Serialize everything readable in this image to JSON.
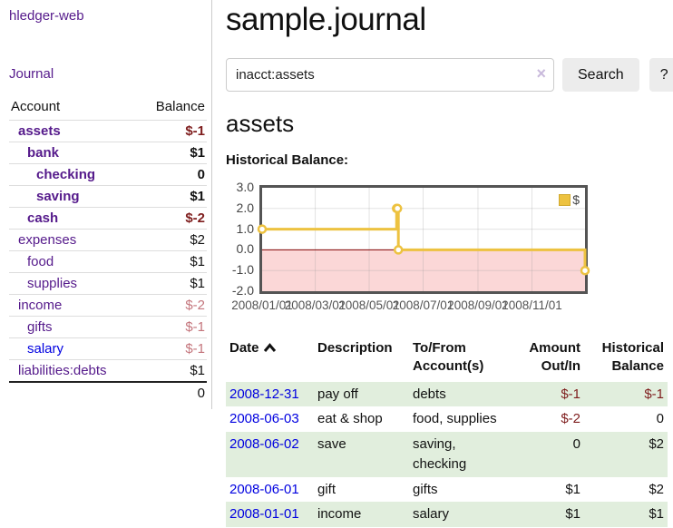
{
  "app": {
    "title": "hledger-web",
    "nav_journal": "Journal"
  },
  "colors": {
    "link_visited_purple": "#551a8b",
    "link_blue": "#0000e0",
    "negative_strong": "#7e1d1d",
    "negative_soft": "#c4757c",
    "row_green": "#e1eedd",
    "series_yellow": "#edc240",
    "negative_area_pink": "#fbd7d7",
    "zero_line_red": "#800000",
    "plot_border_gray": "#545454"
  },
  "sidebar": {
    "header": {
      "account": "Account",
      "balance": "Balance"
    },
    "accounts": [
      {
        "name": "assets",
        "level": 1,
        "bold": true,
        "balance": "$-1",
        "balance_class": "neg-strong",
        "link_class": "purple"
      },
      {
        "name": "bank",
        "level": 2,
        "bold": true,
        "balance": "$1",
        "balance_class": "pos",
        "link_class": "purple"
      },
      {
        "name": "checking",
        "level": 3,
        "bold": true,
        "balance": "0",
        "balance_class": "pos",
        "link_class": "purple"
      },
      {
        "name": "saving",
        "level": 3,
        "bold": true,
        "balance": "$1",
        "balance_class": "pos",
        "link_class": "purple"
      },
      {
        "name": "cash",
        "level": 2,
        "bold": true,
        "balance": "$-2",
        "balance_class": "neg-strong",
        "link_class": "purple"
      },
      {
        "name": "expenses",
        "level": 1,
        "bold": false,
        "balance": "$2",
        "balance_class": "pos",
        "link_class": "purple"
      },
      {
        "name": "food",
        "level": 2,
        "bold": false,
        "balance": "$1",
        "balance_class": "pos",
        "link_class": "purple"
      },
      {
        "name": "supplies",
        "level": 2,
        "bold": false,
        "balance": "$1",
        "balance_class": "pos",
        "link_class": "purple"
      },
      {
        "name": "income",
        "level": 1,
        "bold": false,
        "balance": "$-2",
        "balance_class": "neg-soft",
        "link_class": "purple"
      },
      {
        "name": "gifts",
        "level": 2,
        "bold": false,
        "balance": "$-1",
        "balance_class": "neg-soft",
        "link_class": "purple"
      },
      {
        "name": "salary",
        "level": 2,
        "bold": false,
        "balance": "$-1",
        "balance_class": "neg-soft",
        "link_class": "blue"
      },
      {
        "name": "liabilities:debts",
        "level": 1,
        "bold": false,
        "balance": "$1",
        "balance_class": "pos",
        "link_class": "purple"
      }
    ],
    "total": "0"
  },
  "main": {
    "title": "sample.journal",
    "search": {
      "value": "inacct:assets",
      "clear_icon": "×",
      "button_label": "Search",
      "help_label": "?"
    },
    "account_heading": "assets",
    "chart_label": "Historical Balance:",
    "table": {
      "headers": {
        "date": "Date",
        "description": "Description",
        "tofrom": "To/From Account(s)",
        "amount": "Amount Out/In",
        "balance": "Historical Balance"
      },
      "sort": {
        "column": "date",
        "direction": "ascending"
      },
      "rows": [
        {
          "date": "2008-12-31",
          "description": "pay off",
          "accounts": "debts",
          "amount": "$-1",
          "amount_class": "neg",
          "balance": "$-1",
          "balance_class": "neg"
        },
        {
          "date": "2008-06-03",
          "description": "eat & shop",
          "accounts": "food, supplies",
          "amount": "$-2",
          "amount_class": "neg",
          "balance": "0",
          "balance_class": "pos"
        },
        {
          "date": "2008-06-02",
          "description": "save",
          "accounts": "saving, checking",
          "amount": "0",
          "amount_class": "pos",
          "balance": "$2",
          "balance_class": "pos"
        },
        {
          "date": "2008-06-01",
          "description": "gift",
          "accounts": "gifts",
          "amount": "$1",
          "amount_class": "pos",
          "balance": "$2",
          "balance_class": "pos"
        },
        {
          "date": "2008-01-01",
          "description": "income",
          "accounts": "salary",
          "amount": "$1",
          "amount_class": "pos",
          "balance": "$1",
          "balance_class": "pos"
        }
      ]
    }
  },
  "chart_data": {
    "type": "line",
    "title": "Historical Balance:",
    "step": true,
    "legend": "$",
    "legend_position": "top-right",
    "series": [
      {
        "name": "$",
        "color": "#edc240",
        "points": [
          [
            "2008-01-01",
            1
          ],
          [
            "2008-06-01",
            2
          ],
          [
            "2008-06-02",
            2
          ],
          [
            "2008-06-03",
            0
          ],
          [
            "2008-12-31",
            -1
          ]
        ]
      }
    ],
    "x_range": [
      "2008-01-01",
      "2008-12-31"
    ],
    "ylim": [
      -2,
      3
    ],
    "y_ticks": [
      3.0,
      2.0,
      1.0,
      0.0,
      -1.0,
      -2.0
    ],
    "y_tick_labels": [
      "3.0",
      "2.0",
      "1.0",
      "0.0",
      "-1.0",
      "-2.0"
    ],
    "x_ticks": [
      "2008-01-01",
      "2008-03-01",
      "2008-05-01",
      "2008-07-01",
      "2008-09-01",
      "2008-11-01"
    ],
    "x_tick_labels": [
      "2008/01/01",
      "2008/03/01",
      "2008/05/01",
      "2008/07/01",
      "2008/09/01",
      "2008/11/01"
    ],
    "grid": true,
    "negative_fill": "#fbd7d7",
    "zero_line_color": "#800000"
  }
}
